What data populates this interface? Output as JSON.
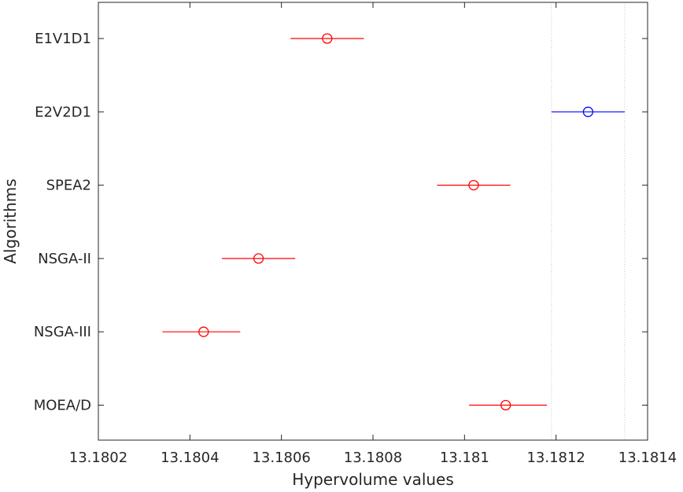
{
  "chart_data": {
    "type": "scatter",
    "subtype": "multiple-comparison-interval",
    "title": "",
    "xlabel": "Hypervolume values",
    "ylabel": "Algorithms",
    "xlim": [
      13.1802,
      13.1814
    ],
    "xticks": [
      13.1802,
      13.1804,
      13.1806,
      13.1808,
      13.181,
      13.1812,
      13.1814
    ],
    "xtick_labels": [
      "13.1802",
      "13.1804",
      "13.1806",
      "13.1808",
      "13.181",
      "13.1812",
      "13.1814"
    ],
    "grid": false,
    "reference_band": [
      13.18119,
      13.18135
    ],
    "colors": {
      "highlight": "#0000ff",
      "others": "#ff0000",
      "axis": "#262626",
      "reference": "#c8c8c8"
    },
    "series": [
      {
        "name": "E1V1D1",
        "mean": 13.1807,
        "lower": 13.18062,
        "upper": 13.18078,
        "highlight": false
      },
      {
        "name": "E2V2D1",
        "mean": 13.18127,
        "lower": 13.18119,
        "upper": 13.18135,
        "highlight": true
      },
      {
        "name": "SPEA2",
        "mean": 13.18102,
        "lower": 13.18094,
        "upper": 13.1811,
        "highlight": false
      },
      {
        "name": "NSGA-II",
        "mean": 13.18055,
        "lower": 13.18047,
        "upper": 13.18063,
        "highlight": false
      },
      {
        "name": "NSGA-III",
        "mean": 13.18043,
        "lower": 13.18034,
        "upper": 13.18051,
        "highlight": false
      },
      {
        "name": "MOEA/D",
        "mean": 13.18109,
        "lower": 13.18101,
        "upper": 13.18118,
        "highlight": false
      }
    ]
  }
}
